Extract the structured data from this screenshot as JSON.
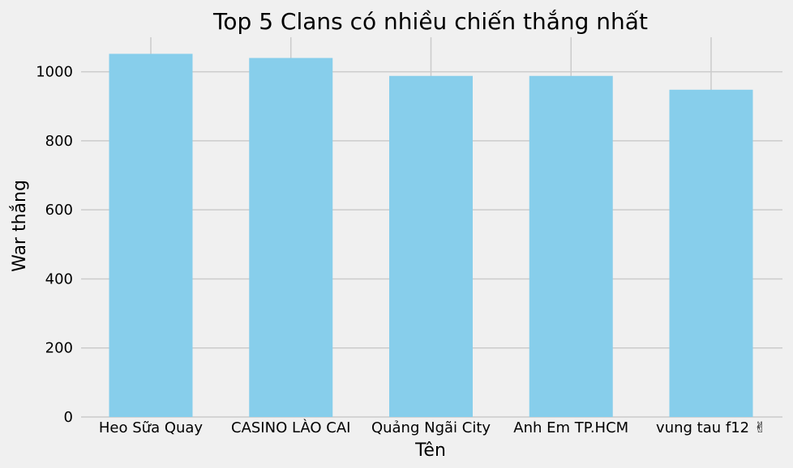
{
  "chart_data": {
    "type": "bar",
    "title": "Top 5 Clans có nhiều chiến thắng nhất",
    "xlabel": "Tên",
    "ylabel": "War thắng",
    "categories": [
      "Heo Sữa Quay",
      "CASINO LÀO CAI",
      "Quảng Ngãi City",
      "Anh Em TP.HCM",
      "vung tau f12 ✌"
    ],
    "values": [
      1052,
      1040,
      988,
      988,
      948
    ],
    "ylim": [
      0,
      1100
    ],
    "yticks": [
      0,
      200,
      400,
      600,
      800,
      1000
    ],
    "grid": true,
    "bar_color": "#87ceeb",
    "background_color": "#f0f0f0",
    "grid_color": "#cbcbcb"
  }
}
